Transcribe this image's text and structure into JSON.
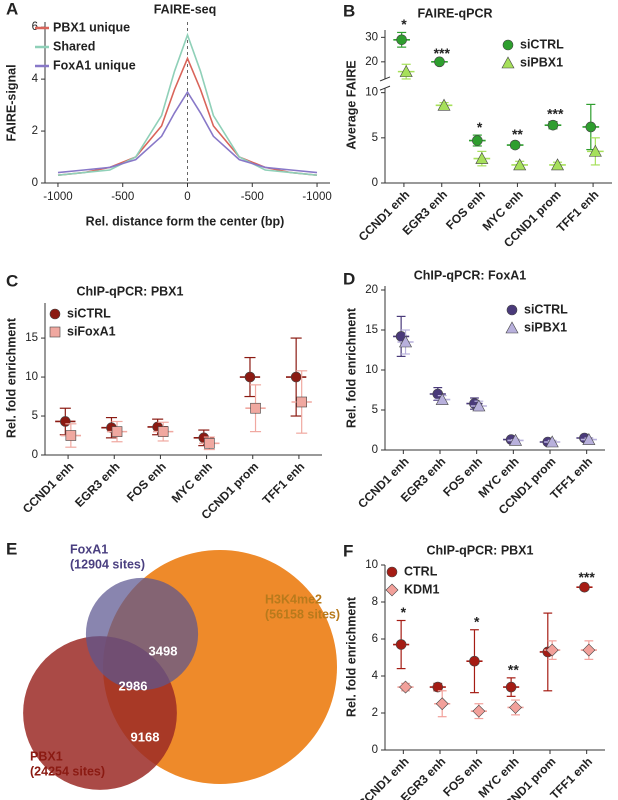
{
  "chart_data": [
    {
      "type": "line",
      "panel": "A",
      "title": "FAIRE-seq",
      "ylabel": "FAIRE-signal",
      "xlabel": "Rel. distance form the center (bp)",
      "x": [
        -1000,
        -800,
        -600,
        -400,
        -200,
        -100,
        0,
        100,
        200,
        400,
        600,
        800,
        1000
      ],
      "series": [
        {
          "name": "PBX1 unique",
          "color": "#d9645a",
          "values": [
            0.3,
            0.4,
            0.6,
            1.0,
            2.2,
            3.6,
            4.8,
            3.6,
            2.2,
            1.0,
            0.6,
            0.4,
            0.3
          ]
        },
        {
          "name": "Shared",
          "color": "#8fd0b8",
          "values": [
            0.3,
            0.4,
            0.5,
            1.0,
            2.6,
            4.3,
            5.7,
            4.3,
            2.6,
            1.0,
            0.5,
            0.4,
            0.3
          ]
        },
        {
          "name": "FoxA1 unique",
          "color": "#8878c8",
          "values": [
            0.4,
            0.5,
            0.6,
            0.9,
            1.8,
            2.7,
            3.5,
            2.7,
            1.8,
            0.9,
            0.6,
            0.5,
            0.4
          ]
        }
      ],
      "xlim": [
        -1100,
        1100
      ],
      "xticks": [
        -1000,
        -500,
        0,
        {
          "value": 500,
          "label": "-500"
        },
        {
          "value": 1000,
          "label": "-1000"
        }
      ],
      "ylim": [
        0,
        6.2
      ],
      "yticks": [
        0,
        2,
        4,
        6
      ],
      "vline": 0,
      "legend": "upper left"
    },
    {
      "type": "dot",
      "panel": "B",
      "title": "FAIRE-qPCR",
      "ylabel": "Average FAIRE",
      "categories": [
        "CCND1 enh",
        "EGR3 enh",
        "FOS enh",
        "MYC enh",
        "CCND1 prom",
        "TFF1 enh"
      ],
      "series": [
        {
          "name": "siCTRL",
          "color": "#2e9e2e",
          "marker": "circle",
          "values": [
            29,
            20,
            4.7,
            4.2,
            6.4,
            6.2
          ],
          "errors": [
            3,
            0.3,
            0.6,
            0.3,
            0.4,
            2.5
          ]
        },
        {
          "name": "siPBX1",
          "color": "#a6e05a",
          "marker": "triangle",
          "values": [
            16,
            8.6,
            2.7,
            2.0,
            2.0,
            3.5
          ],
          "errors": [
            3,
            0.3,
            0.8,
            0.4,
            0.3,
            1.5
          ]
        }
      ],
      "annotations": [
        "*",
        "***",
        "*",
        "**",
        "***",
        null
      ],
      "ylim": [
        0,
        33
      ],
      "axis_break": [
        10.5,
        13
      ],
      "yticks": [
        0,
        5,
        10,
        20,
        30
      ],
      "legend": "upper right"
    },
    {
      "type": "dot",
      "panel": "C",
      "title": "ChIP-qPCR: PBX1",
      "ylabel": "Rel. fold enrichment",
      "categories": [
        "CCND1 enh",
        "EGR3 enh",
        "FOS enh",
        "MYC enh",
        "CCND1 prom",
        "TFF1 enh"
      ],
      "series": [
        {
          "name": "siCTRL",
          "color": "#8b1a12",
          "marker": "circle",
          "values": [
            4.3,
            3.5,
            3.6,
            2.2,
            10,
            10
          ],
          "errors": [
            1.7,
            1.3,
            1.0,
            1.0,
            2.5,
            5
          ]
        },
        {
          "name": "siFoxA1",
          "color": "#f0a8a0",
          "marker": "square",
          "values": [
            2.5,
            3.0,
            3.0,
            1.5,
            6,
            6.8
          ],
          "errors": [
            1.5,
            1.3,
            1.2,
            0.8,
            3,
            4
          ]
        }
      ],
      "ylim": [
        0,
        19.5
      ],
      "yticks": [
        0,
        5,
        10,
        15
      ],
      "legend": "upper left"
    },
    {
      "type": "dot",
      "panel": "D",
      "title": "ChIP-qPCR: FoxA1",
      "ylabel": "Rel. fold enrichment",
      "categories": [
        "CCND1 enh",
        "EGR3 enh",
        "FOS enh",
        "MYC enh",
        "CCND1 prom",
        "TFF1 enh"
      ],
      "series": [
        {
          "name": "siCTRL",
          "color": "#4a3a7a",
          "marker": "circle",
          "values": [
            14.2,
            7.0,
            5.8,
            1.3,
            1.0,
            1.5
          ],
          "errors": [
            2.5,
            0.8,
            0.7,
            0.1,
            0.2,
            0.2
          ]
        },
        {
          "name": "siPBX1",
          "color": "#b8b0dc",
          "marker": "triangle",
          "values": [
            13.5,
            6.3,
            5.5,
            1.2,
            1.0,
            1.3
          ],
          "errors": [
            1.5,
            0.5,
            0.6,
            0.1,
            0.2,
            0.2
          ]
        }
      ],
      "ylim": [
        0,
        20.5
      ],
      "yticks": [
        0,
        5,
        10,
        15,
        20
      ],
      "legend": "upper right"
    },
    {
      "type": "venn",
      "panel": "E",
      "sets": [
        {
          "name": "H3K4me2",
          "size": 56158,
          "size_label": "(56158 sites)",
          "color": "#ee8a2a",
          "label_color": "#b87a1c"
        },
        {
          "name": "PBX1",
          "size": 24254,
          "size_label": "(24254 sites)",
          "color": "#9b2a26",
          "label_color": "#8b1a12"
        },
        {
          "name": "FoxA1",
          "size": 12904,
          "size_label": "(12904 sites)",
          "color": "#5b5690",
          "label_color": "#4a3f80"
        }
      ],
      "intersections": [
        {
          "sets": [
            "FoxA1",
            "H3K4me2"
          ],
          "value": 3498
        },
        {
          "sets": [
            "FoxA1",
            "PBX1",
            "H3K4me2"
          ],
          "value": 2986
        },
        {
          "sets": [
            "PBX1",
            "H3K4me2"
          ],
          "value": 9168
        }
      ]
    },
    {
      "type": "dot",
      "panel": "F",
      "title": "ChIP-qPCR: PBX1",
      "ylabel": "Rel. fold enrichment",
      "categories": [
        "CCND1 enh",
        "EGR3 enh",
        "FOS enh",
        "MYC enh",
        "CCND1 prom",
        "TFF1 enh"
      ],
      "series": [
        {
          "name": "CTRL",
          "color": "#a51c14",
          "marker": "circle",
          "values": [
            5.7,
            3.4,
            4.8,
            3.4,
            5.3,
            8.8
          ],
          "errors": [
            1.3,
            0.2,
            1.7,
            0.5,
            2.1,
            0.1
          ]
        },
        {
          "name": "KDM1",
          "color": "#f2a09a",
          "marker": "diamond",
          "values": [
            3.4,
            2.5,
            2.1,
            2.3,
            5.4,
            5.4
          ],
          "errors": [
            0.2,
            0.7,
            0.4,
            0.4,
            0.5,
            0.5
          ]
        }
      ],
      "annotations": [
        "*",
        null,
        "*",
        "**",
        null,
        "***"
      ],
      "ylim": [
        0,
        10
      ],
      "yticks": [
        0,
        2,
        4,
        6,
        8,
        10
      ],
      "legend": "upper left"
    }
  ]
}
